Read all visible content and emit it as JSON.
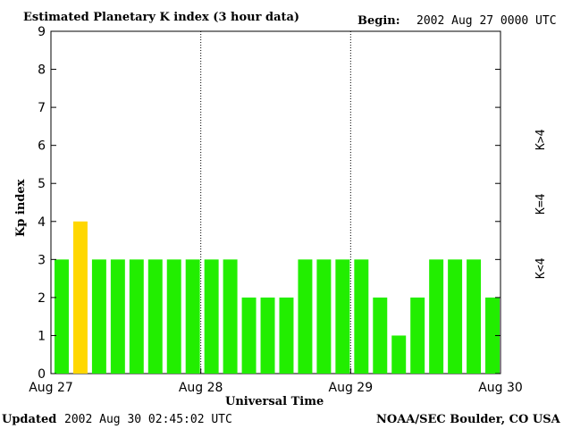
{
  "header": {
    "title": "Estimated Planetary K index (3 hour data)",
    "begin_label": "Begin:",
    "begin_value": "2002 Aug 27 0000 UTC"
  },
  "footer": {
    "updated_label": "Updated",
    "updated_value": "2002 Aug 30 02:45:02 UTC",
    "source": "NOAA/SEC Boulder, CO USA"
  },
  "legend": {
    "low": "K<4",
    "equal": "K=4",
    "high": "K>4"
  },
  "colors": {
    "low": "#22ee00",
    "equal": "#ffd700",
    "high": "#ff2200",
    "axis": "#000000",
    "background": "#ffffff"
  },
  "chart_data": {
    "type": "bar",
    "xlabel": "Universal Time",
    "ylabel": "Kp index",
    "ylim": [
      0,
      9
    ],
    "yticks": [
      0,
      1,
      2,
      3,
      4,
      5,
      6,
      7,
      8,
      9
    ],
    "xticks": [
      "Aug 27",
      "Aug 28",
      "Aug 29",
      "Aug 30"
    ],
    "day_separators": [
      "Aug 28",
      "Aug 29"
    ],
    "categories": [
      "Aug 27 00",
      "Aug 27 03",
      "Aug 27 06",
      "Aug 27 09",
      "Aug 27 12",
      "Aug 27 15",
      "Aug 27 18",
      "Aug 27 21",
      "Aug 28 00",
      "Aug 28 03",
      "Aug 28 06",
      "Aug 28 09",
      "Aug 28 12",
      "Aug 28 15",
      "Aug 28 18",
      "Aug 28 21",
      "Aug 29 00",
      "Aug 29 03",
      "Aug 29 06",
      "Aug 29 09",
      "Aug 29 12",
      "Aug 29 15",
      "Aug 29 18",
      "Aug 29 21"
    ],
    "values": [
      3,
      4,
      3,
      3,
      3,
      3,
      3,
      3,
      3,
      3,
      2,
      2,
      2,
      3,
      3,
      3,
      3,
      2,
      1,
      2,
      3,
      3,
      3,
      2
    ]
  }
}
